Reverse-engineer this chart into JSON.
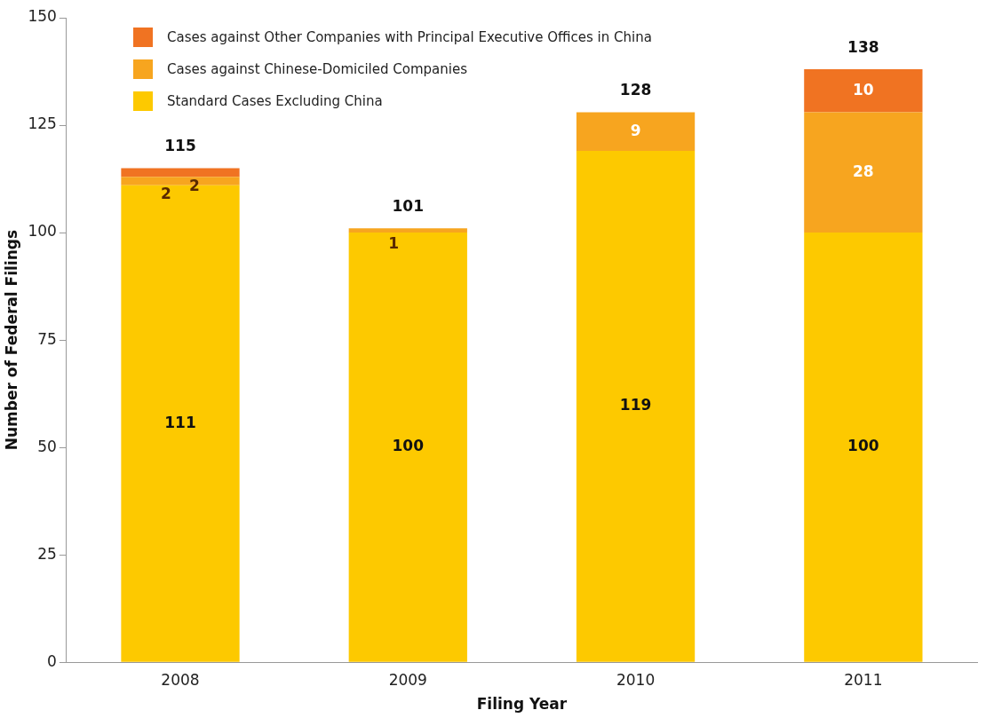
{
  "chart_data": {
    "type": "bar",
    "stacked": true,
    "xlabel": "Filing Year",
    "ylabel": "Number of Federal Filings",
    "categories": [
      "2008",
      "2009",
      "2010",
      "2011"
    ],
    "series": [
      {
        "name": "Standard Cases Excluding China",
        "color": "#fdc900",
        "values": [
          111,
          100,
          119,
          100
        ],
        "value_labels": [
          "111",
          "100",
          "119",
          "100"
        ]
      },
      {
        "name": "Cases against Chinese-Domiciled Companies",
        "color": "#f7a51f",
        "values": [
          2,
          1,
          9,
          28
        ],
        "value_labels": [
          "2",
          "1",
          "9",
          "28"
        ]
      },
      {
        "name": "Cases against Other Companies with Principal Executive Offices in China",
        "color": "#f07322",
        "values": [
          2,
          0,
          0,
          10
        ],
        "value_labels": [
          "2",
          null,
          null,
          "10"
        ]
      }
    ],
    "totals": [
      "115",
      "101",
      "128",
      "138"
    ],
    "ylim": [
      0,
      150
    ],
    "yticks": [
      0,
      25,
      50,
      75,
      100,
      125,
      150
    ],
    "grid": false,
    "legend": "top left"
  }
}
